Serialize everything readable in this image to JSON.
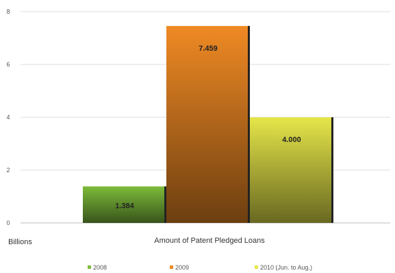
{
  "chart_data": {
    "type": "bar",
    "categories": [
      "Amount of Patent Pledged Loans"
    ],
    "series": [
      {
        "name": "2008",
        "values": [
          1.384
        ],
        "label": "1.384",
        "color": "#7dbb3a"
      },
      {
        "name": "2009",
        "values": [
          7.459
        ],
        "label": "7.459",
        "color": "#f08a24"
      },
      {
        "name": "2010 (Jun. to Aug.)",
        "values": [
          4.0
        ],
        "label": "4.000",
        "color": "#e6e64a"
      }
    ],
    "xlabel": "Amount of Patent Pledged Loans",
    "ylabel": "Billions",
    "ylim": [
      0,
      8
    ],
    "yticks": [
      0,
      2,
      4,
      6,
      8
    ],
    "grid": true,
    "legend": "bottom"
  }
}
